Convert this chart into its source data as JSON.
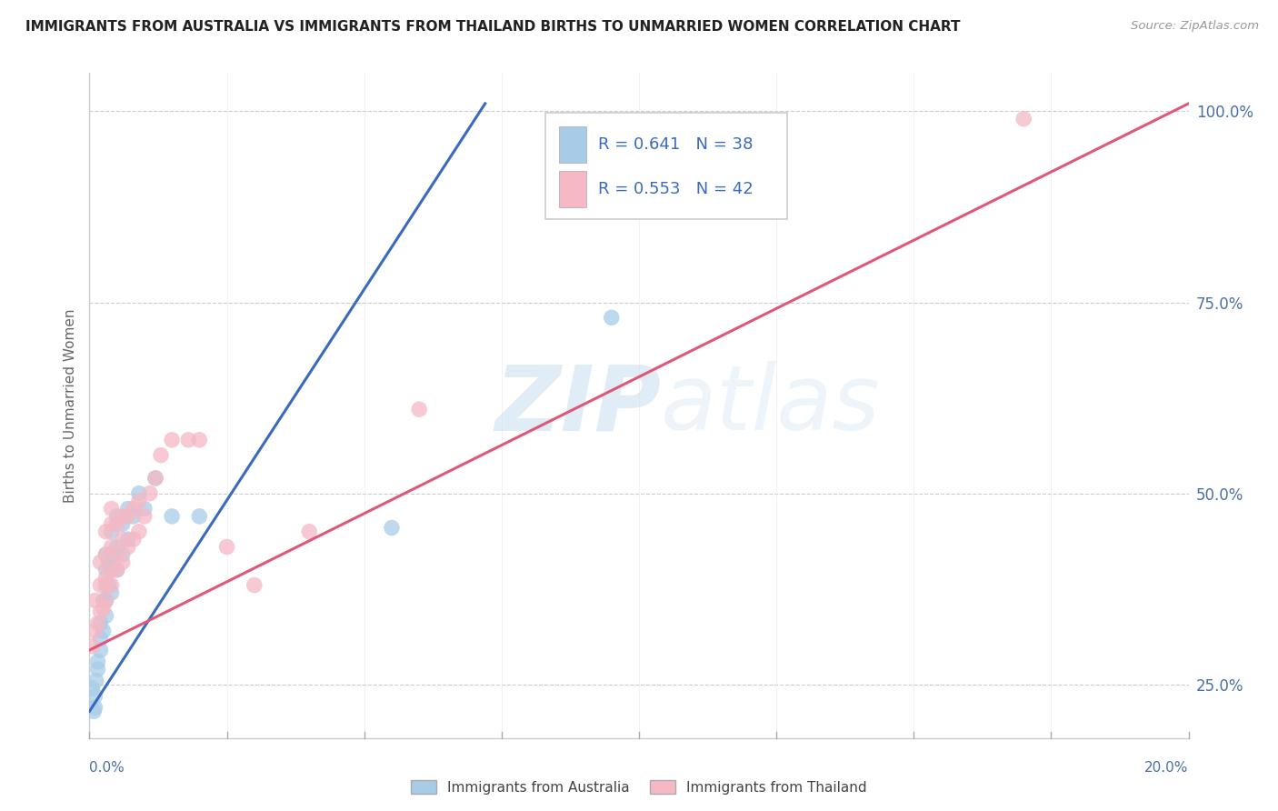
{
  "title": "IMMIGRANTS FROM AUSTRALIA VS IMMIGRANTS FROM THAILAND BIRTHS TO UNMARRIED WOMEN CORRELATION CHART",
  "source": "Source: ZipAtlas.com",
  "ylabel": "Births to Unmarried Women",
  "x_min": 0.0,
  "x_max": 0.2,
  "y_min": 0.18,
  "y_max": 1.05,
  "australia_r": 0.641,
  "australia_n": 38,
  "thailand_r": 0.553,
  "thailand_n": 42,
  "australia_color": "#a8cce8",
  "thailand_color": "#f5b8c4",
  "australia_line_color": "#3a6abf",
  "thailand_line_color": "#e05878",
  "legend_label_australia": "Immigrants from Australia",
  "legend_label_thailand": "Immigrants from Thailand",
  "watermark_zip": "ZIP",
  "watermark_atlas": "atlas",
  "ytick_positions": [
    0.25,
    0.5,
    0.75,
    1.0
  ],
  "ytick_labels": [
    "25.0%",
    "50.0%",
    "75.0%",
    "100.0%"
  ],
  "australia_x": [
    0.0005,
    0.0008,
    0.001,
    0.001,
    0.0012,
    0.0015,
    0.0015,
    0.002,
    0.002,
    0.002,
    0.0025,
    0.0025,
    0.003,
    0.003,
    0.003,
    0.003,
    0.003,
    0.0035,
    0.0035,
    0.004,
    0.004,
    0.004,
    0.004,
    0.005,
    0.005,
    0.005,
    0.006,
    0.006,
    0.007,
    0.007,
    0.008,
    0.009,
    0.01,
    0.012,
    0.015,
    0.02,
    0.055,
    0.095
  ],
  "australia_y": [
    0.245,
    0.215,
    0.22,
    0.235,
    0.255,
    0.27,
    0.28,
    0.295,
    0.31,
    0.33,
    0.32,
    0.36,
    0.34,
    0.36,
    0.38,
    0.4,
    0.42,
    0.38,
    0.41,
    0.37,
    0.4,
    0.42,
    0.45,
    0.4,
    0.43,
    0.47,
    0.42,
    0.46,
    0.44,
    0.48,
    0.47,
    0.5,
    0.48,
    0.52,
    0.47,
    0.47,
    0.455,
    0.73
  ],
  "thailand_x": [
    0.0005,
    0.001,
    0.001,
    0.0015,
    0.002,
    0.002,
    0.002,
    0.0025,
    0.003,
    0.003,
    0.003,
    0.003,
    0.003,
    0.004,
    0.004,
    0.004,
    0.004,
    0.004,
    0.005,
    0.005,
    0.005,
    0.006,
    0.006,
    0.006,
    0.007,
    0.007,
    0.008,
    0.008,
    0.009,
    0.009,
    0.01,
    0.011,
    0.012,
    0.013,
    0.015,
    0.018,
    0.02,
    0.025,
    0.03,
    0.04,
    0.06,
    0.17
  ],
  "thailand_y": [
    0.3,
    0.32,
    0.36,
    0.33,
    0.345,
    0.38,
    0.41,
    0.35,
    0.36,
    0.38,
    0.39,
    0.42,
    0.45,
    0.38,
    0.4,
    0.43,
    0.46,
    0.48,
    0.4,
    0.42,
    0.46,
    0.41,
    0.44,
    0.47,
    0.43,
    0.47,
    0.44,
    0.48,
    0.45,
    0.49,
    0.47,
    0.5,
    0.52,
    0.55,
    0.57,
    0.57,
    0.57,
    0.43,
    0.38,
    0.45,
    0.61,
    0.99
  ],
  "aus_line_x0": 0.0,
  "aus_line_y0": 0.215,
  "aus_line_x1": 0.072,
  "aus_line_y1": 1.01,
  "tha_line_x0": 0.0,
  "tha_line_y0": 0.295,
  "tha_line_x1": 0.2,
  "tha_line_y1": 1.01
}
